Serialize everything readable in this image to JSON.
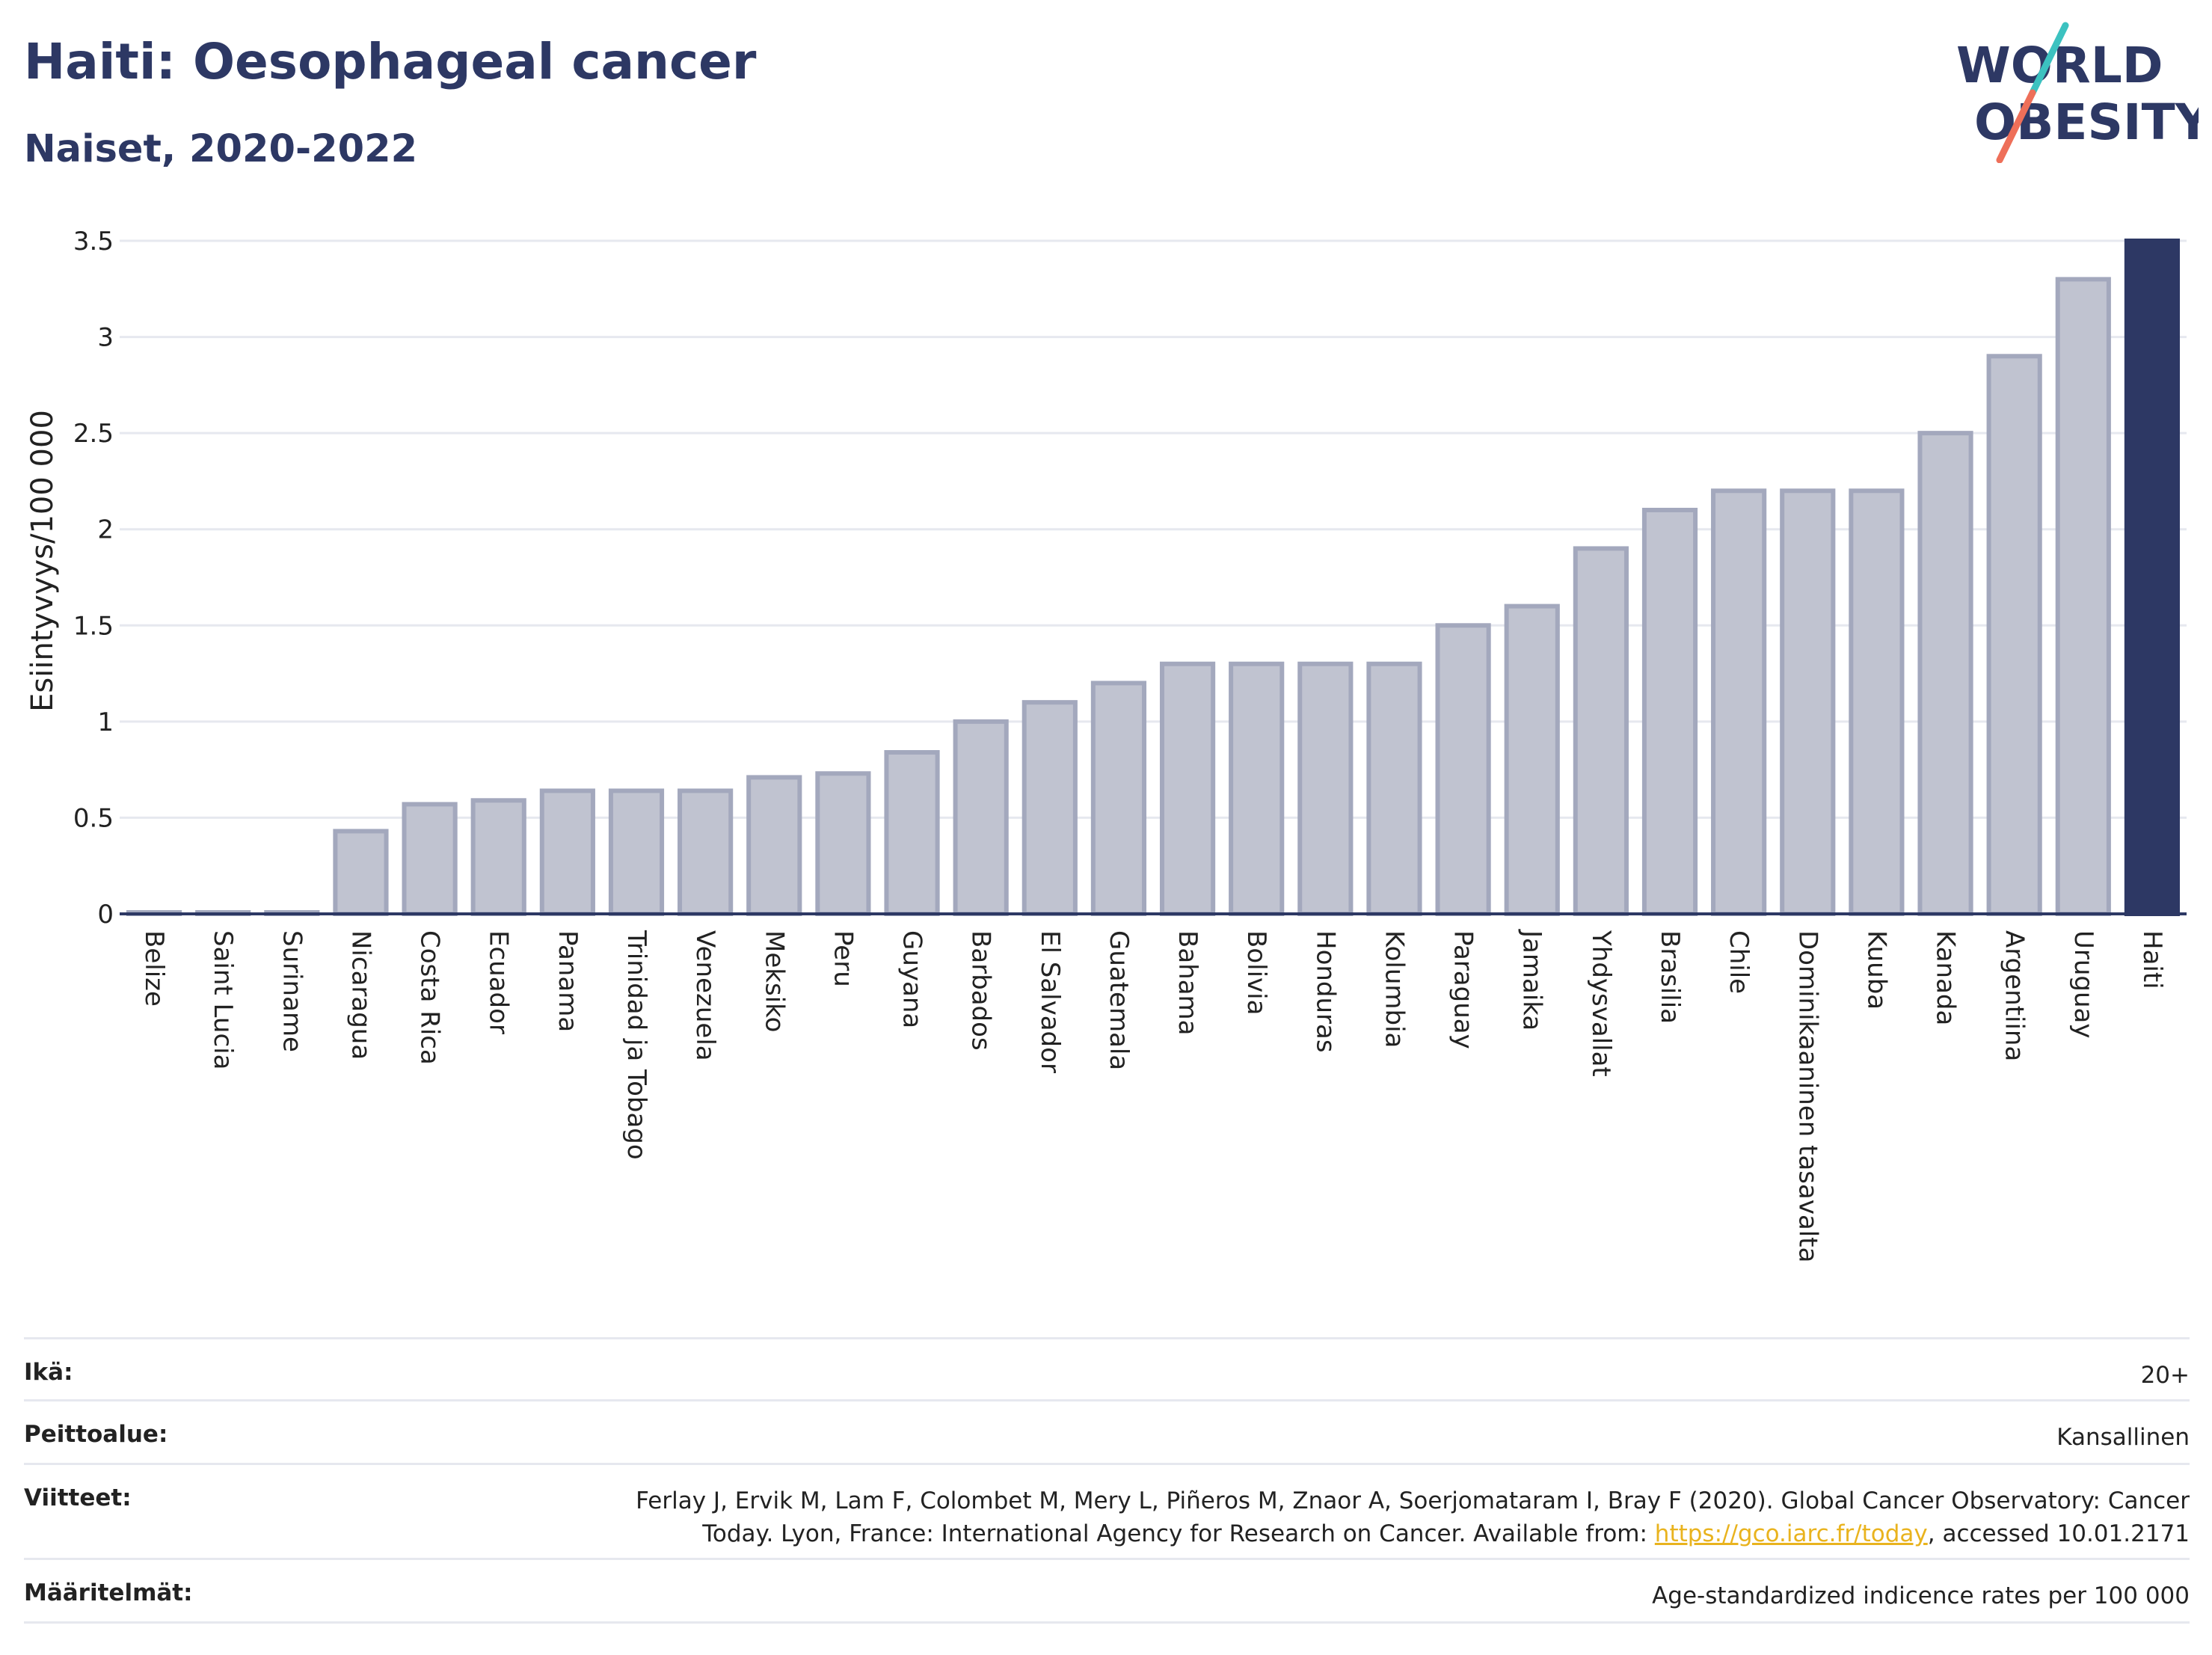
{
  "header": {
    "title": "Haiti: Oesophageal cancer",
    "subtitle": "Naiset, 2020-2022"
  },
  "logo": {
    "line1": "WORLD",
    "line2": "OBESITY",
    "stroke_colors": [
      "#3cc2c0",
      "#ee6f59"
    ]
  },
  "colors": {
    "bar": "#c0c3d0",
    "bar_edge": "#a3a8bd",
    "highlight": "#2d3864",
    "grid": "#e6e8ef"
  },
  "chart_data": {
    "type": "bar",
    "ylabel": "Esiintyvyys/100 000",
    "ylim": [
      0,
      3.5
    ],
    "yticks": [
      0,
      0.5,
      1,
      1.5,
      2,
      2.5,
      3,
      3.5
    ],
    "ytick_labels": [
      "0",
      "0.5",
      "1",
      "1.5",
      "2",
      "2.5",
      "3",
      "3.5"
    ],
    "grid": true,
    "highlight": "Haiti",
    "categories": [
      "Belize",
      "Saint Lucia",
      "Suriname",
      "Nicaragua",
      "Costa Rica",
      "Ecuador",
      "Panama",
      "Trinidad ja Tobago",
      "Venezuela",
      "Meksiko",
      "Peru",
      "Guyana",
      "Barbados",
      "El Salvador",
      "Guatemala",
      "Bahama",
      "Bolivia",
      "Honduras",
      "Kolumbia",
      "Paraguay",
      "Jamaika",
      "Yhdysvallat",
      "Brasilia",
      "Chile",
      "Dominikaaninen tasavalta",
      "Kuuba",
      "Kanada",
      "Argentiina",
      "Uruguay",
      "Haiti"
    ],
    "values": [
      0.0,
      0.0,
      0.0,
      0.43,
      0.57,
      0.59,
      0.64,
      0.64,
      0.64,
      0.71,
      0.73,
      0.84,
      1.0,
      1.1,
      1.2,
      1.3,
      1.3,
      1.3,
      1.3,
      1.5,
      1.6,
      1.9,
      2.1,
      2.2,
      2.2,
      2.2,
      2.5,
      2.9,
      3.3,
      3.5
    ]
  },
  "info": [
    {
      "key": "Ikä:",
      "value": "20+"
    },
    {
      "key": "Peittoalue:",
      "value": "Kansallinen"
    },
    {
      "key": "Viitteet:",
      "value_line1": "Ferlay J, Ervik M, Lam F, Colombet M, Mery L, Piñeros M, Znaor A, Soerjomataram I, Bray F (2020). Global Cancer Observatory: Cancer",
      "value_pre": "Today. Lyon, France: International Agency for Research on Cancer. Available from: ",
      "link": "https://gco.iarc.fr/today",
      "value_post": ", accessed 10.01.2171"
    },
    {
      "key": "Määritelmät:",
      "value": "Age-standardized indicence rates per 100 000"
    }
  ]
}
